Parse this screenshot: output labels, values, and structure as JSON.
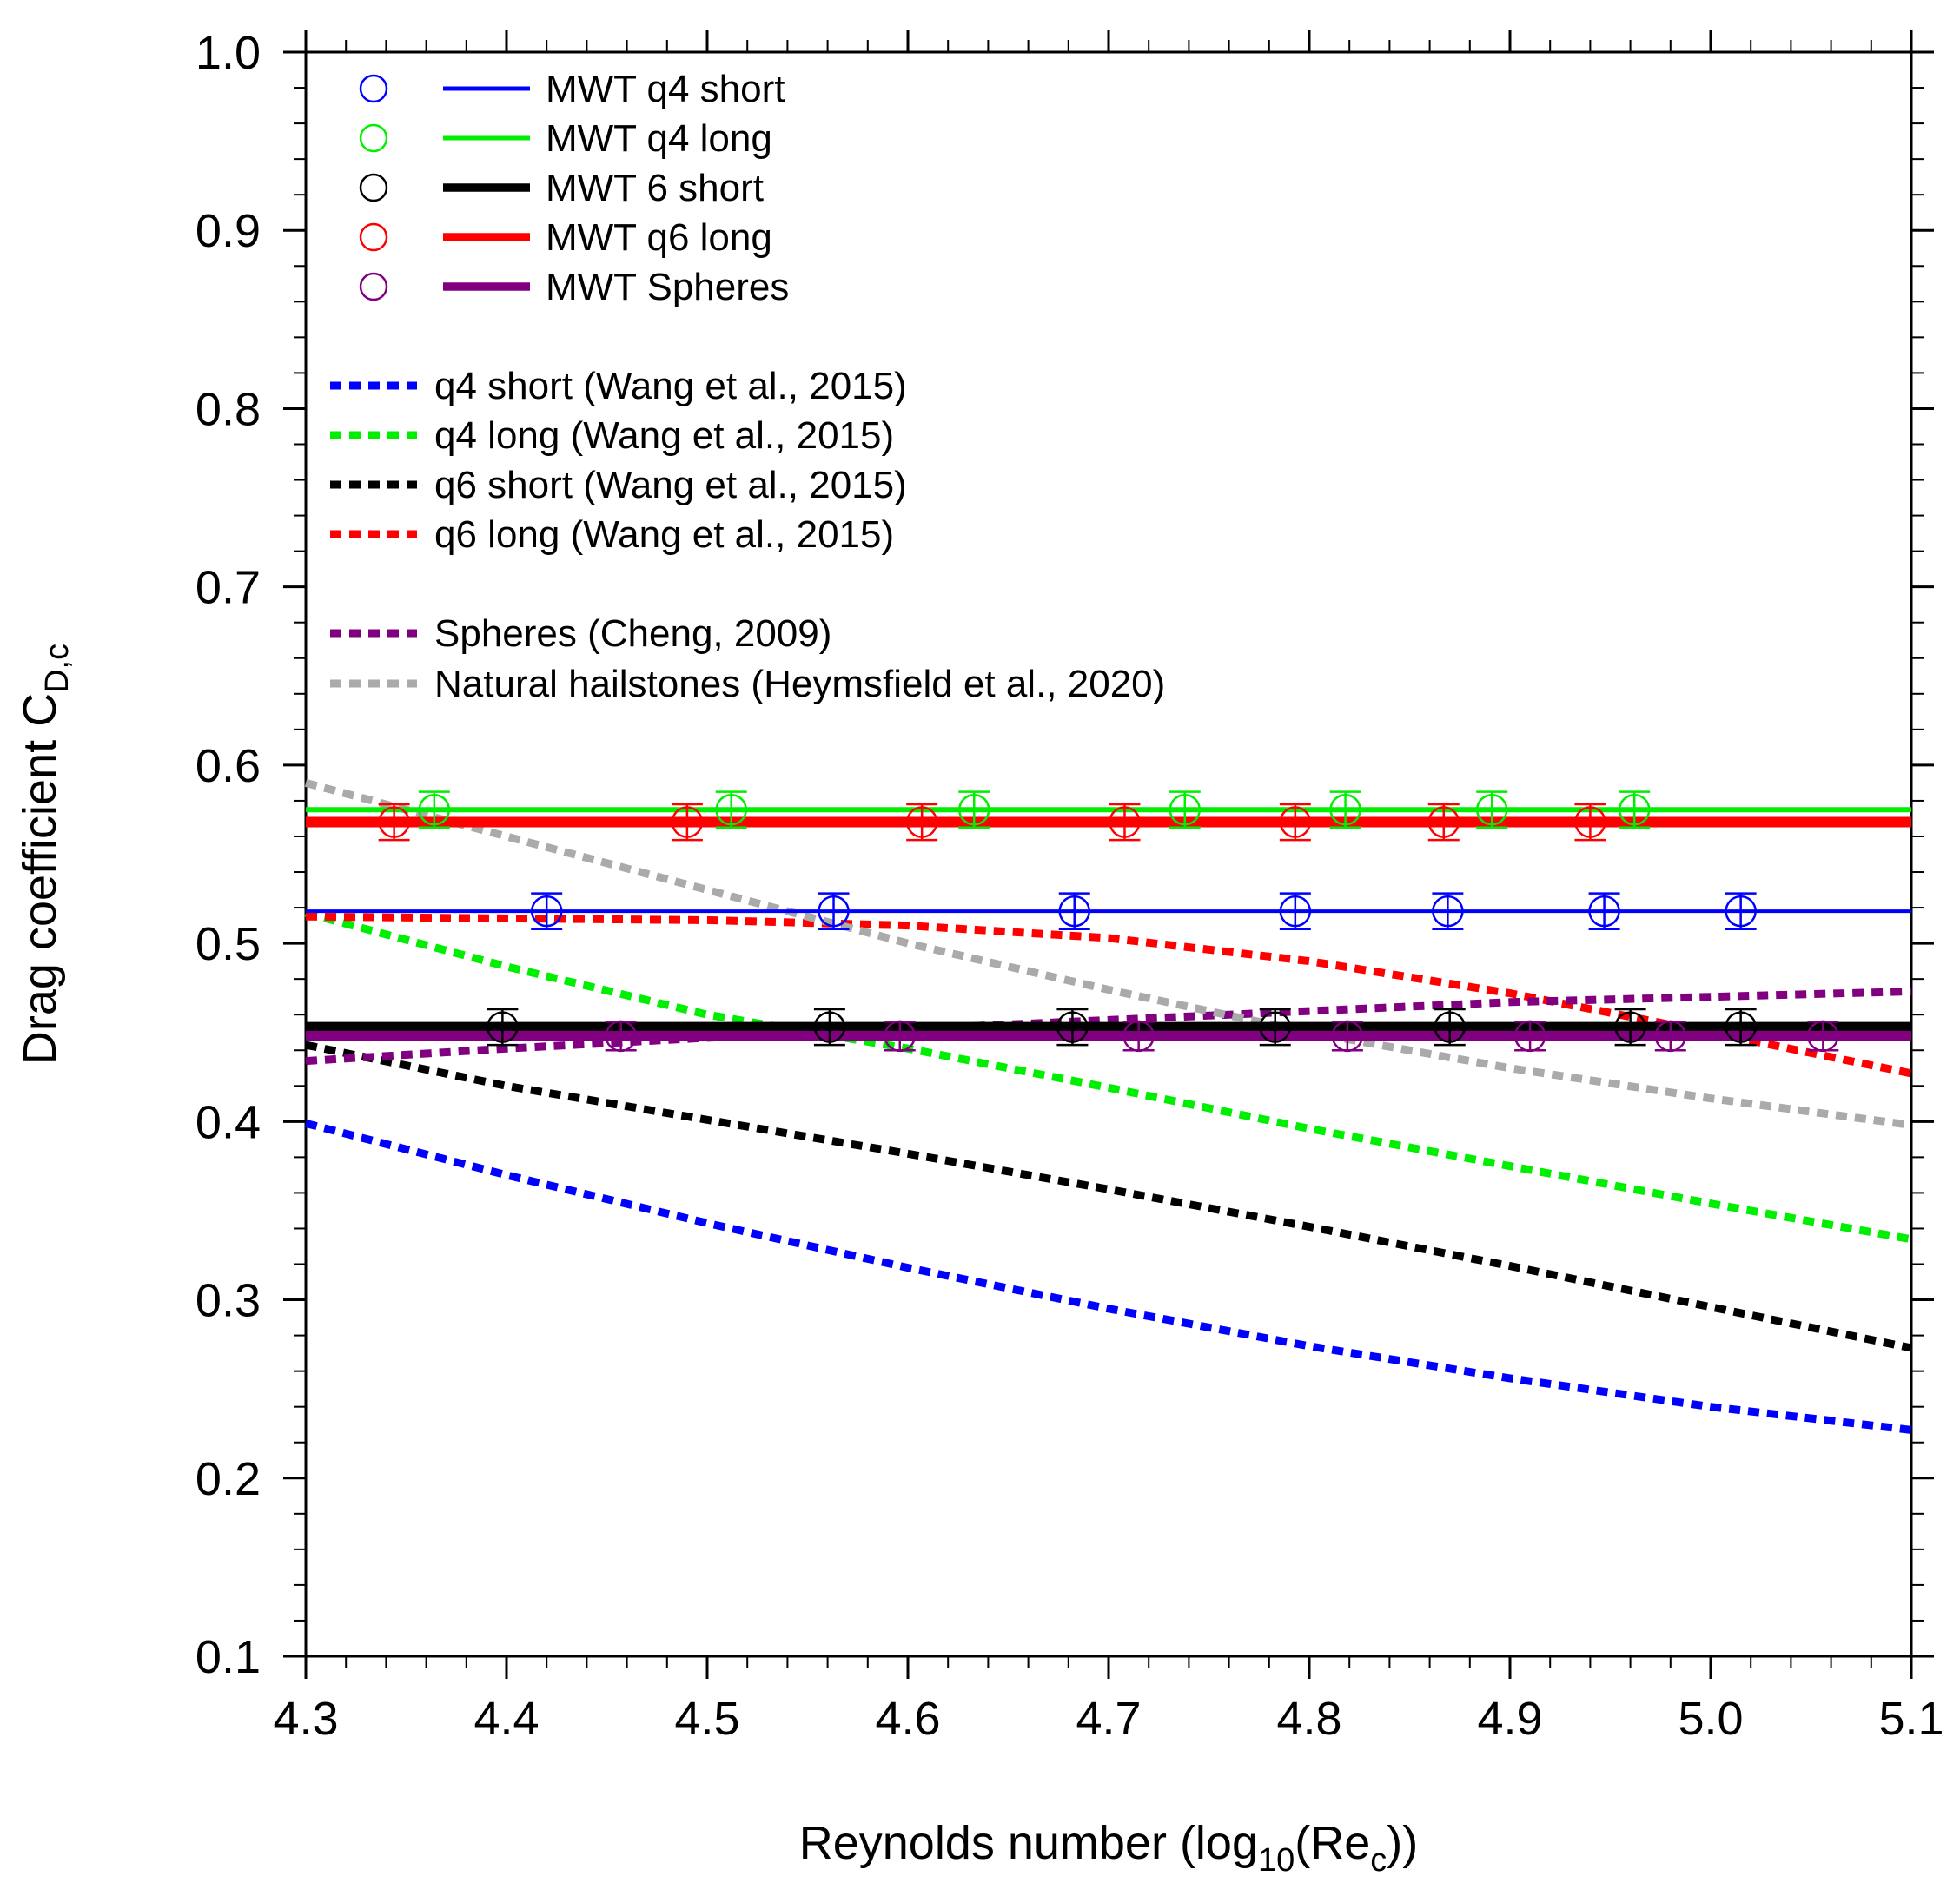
{
  "chart_data": {
    "type": "scatter",
    "xlabel_main": "Reynolds number (log",
    "xlabel_sub": "10",
    "xlabel_mid": "(Re",
    "xlabel_sub2": "c",
    "xlabel_end": "))",
    "ylabel_main": "Drag coefficient C",
    "ylabel_sub": "D,c",
    "xlim": [
      4.3,
      5.1
    ],
    "ylim": [
      0.1,
      1.0
    ],
    "x_ticks": [
      4.3,
      4.4,
      4.5,
      4.6,
      4.7,
      4.8,
      4.9,
      5.0,
      5.1
    ],
    "x_tick_labels": [
      "4.3",
      "4.4",
      "4.5",
      "4.6",
      "4.7",
      "4.8",
      "4.9",
      "5.0",
      "5.1"
    ],
    "y_ticks": [
      0.1,
      0.2,
      0.3,
      0.4,
      0.5,
      0.6,
      0.7,
      0.8,
      0.9,
      1.0
    ],
    "y_tick_labels": [
      "0.1",
      "0.2",
      "0.3",
      "0.4",
      "0.5",
      "0.6",
      "0.7",
      "0.8",
      "0.9",
      "1.0"
    ],
    "measured": [
      {
        "name": "MWT q4 short",
        "color": "#0000ff",
        "mean": 0.518,
        "error": 0.01,
        "line_weight": "thin",
        "x": [
          4.42,
          4.563,
          4.683,
          4.793,
          4.869,
          4.947,
          5.015
        ]
      },
      {
        "name": "MWT q4 long",
        "color": "#00ee00",
        "mean": 0.575,
        "error": 0.01,
        "line_weight": "medium",
        "x": [
          4.364,
          4.512,
          4.633,
          4.738,
          4.818,
          4.891,
          4.962
        ]
      },
      {
        "name": "MWT 6 short",
        "color": "#000000",
        "mean": 0.453,
        "error": 0.01,
        "line_weight": "thick",
        "x": [
          4.398,
          4.561,
          4.682,
          4.783,
          4.87,
          4.96,
          5.015
        ]
      },
      {
        "name": "MWT q6 long",
        "color": "#ff0000",
        "mean": 0.568,
        "error": 0.01,
        "line_weight": "thick",
        "x": [
          4.344,
          4.49,
          4.607,
          4.708,
          4.793,
          4.867,
          4.94
        ]
      },
      {
        "name": "MWT Spheres",
        "color": "#800080",
        "mean": 0.448,
        "error": 0.008,
        "line_weight": "thick",
        "x": [
          4.457,
          4.596,
          4.715,
          4.819,
          4.91,
          4.98,
          5.056
        ]
      }
    ],
    "curves": [
      {
        "name": "q4 short (Wang et al., 2015)",
        "color": "#0000ff",
        "x": [
          4.3,
          4.4,
          4.5,
          4.6,
          4.7,
          4.8,
          4.9,
          5.0,
          5.1
        ],
        "y": [
          0.399,
          0.37,
          0.343,
          0.318,
          0.295,
          0.274,
          0.256,
          0.24,
          0.227
        ]
      },
      {
        "name": "q4 long (Wang et al., 2015)",
        "color": "#00ee00",
        "x": [
          4.3,
          4.4,
          4.5,
          4.6,
          4.7,
          4.8,
          4.9,
          5.0,
          5.1
        ],
        "y": [
          0.517,
          0.487,
          0.46,
          0.441,
          0.419,
          0.396,
          0.375,
          0.354,
          0.334
        ]
      },
      {
        "name": "q6 short (Wang et al., 2015)",
        "color": "#000000",
        "x": [
          4.3,
          4.4,
          4.5,
          4.6,
          4.7,
          4.8,
          4.9,
          5.0,
          5.1
        ],
        "y": [
          0.443,
          0.42,
          0.401,
          0.382,
          0.362,
          0.341,
          0.319,
          0.296,
          0.273
        ]
      },
      {
        "name": "q6 long (Wang et al., 2015)",
        "color": "#ff0000",
        "x": [
          4.3,
          4.4,
          4.5,
          4.6,
          4.7,
          4.8,
          4.9,
          5.0,
          5.1
        ],
        "y": [
          0.515,
          0.514,
          0.513,
          0.51,
          0.503,
          0.49,
          0.472,
          0.45,
          0.427
        ]
      },
      {
        "name": "Spheres (Cheng, 2009)",
        "color": "#800080",
        "x": [
          4.3,
          4.4,
          4.5,
          4.6,
          4.7,
          4.8,
          4.9,
          5.0,
          5.1
        ],
        "y": [
          0.434,
          0.441,
          0.447,
          0.452,
          0.457,
          0.462,
          0.467,
          0.47,
          0.473
        ]
      },
      {
        "name": "Natural hailstones (Heymsfield et al., 2020)",
        "color": "#aaaaaa",
        "x": [
          4.3,
          4.4,
          4.5,
          4.6,
          4.7,
          4.8,
          4.9,
          5.0,
          5.1
        ],
        "y": [
          0.59,
          0.56,
          0.53,
          0.5,
          0.474,
          0.45,
          0.43,
          0.413,
          0.398
        ]
      }
    ],
    "legend_position": "top-left"
  }
}
